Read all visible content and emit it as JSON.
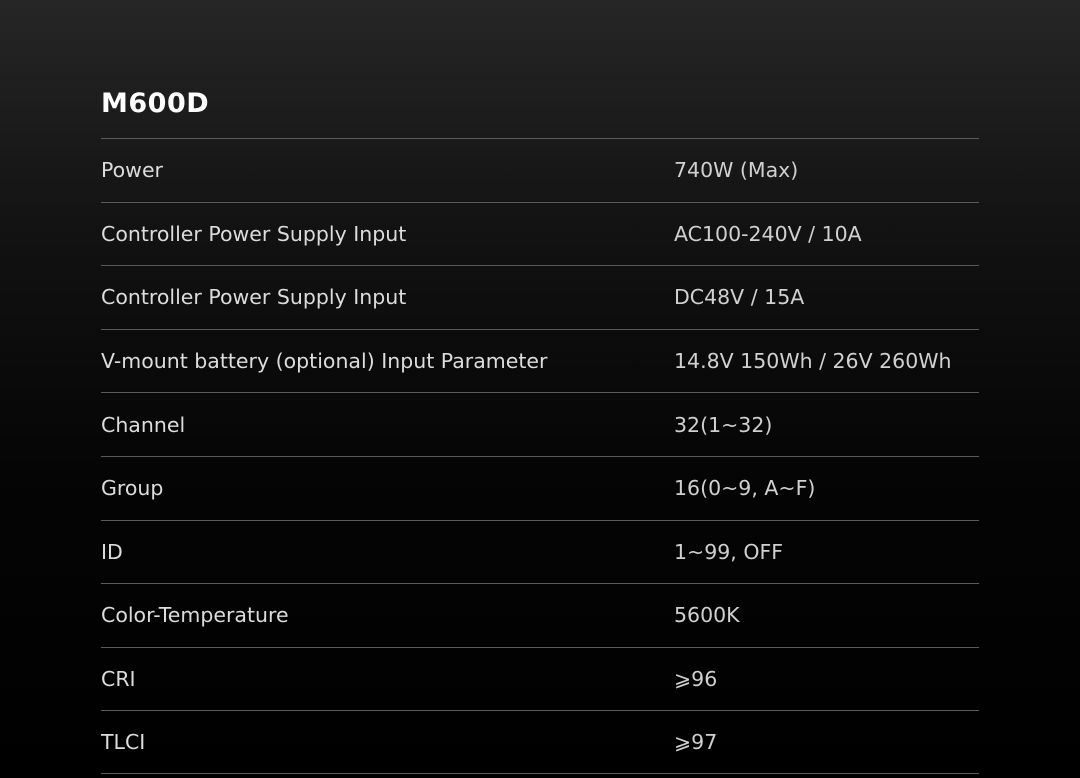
{
  "title": "M600D",
  "specs": [
    {
      "label": "Power",
      "value": "740W (Max)"
    },
    {
      "label": "Controller Power Supply Input",
      "value": "AC100-240V / 10A"
    },
    {
      "label": "Controller Power Supply Input",
      "value": "DC48V / 15A"
    },
    {
      "label": "V-mount battery (optional) Input Parameter",
      "value": "14.8V 150Wh / 26V 260Wh"
    },
    {
      "label": "Channel",
      "value": "32(1~32)"
    },
    {
      "label": "Group",
      "value": "16(0~9, A~F)"
    },
    {
      "label": "ID",
      "value": "1~99, OFF"
    },
    {
      "label": "Color-Temperature",
      "value": "5600K"
    },
    {
      "label": "CRI",
      "value": "⩾96"
    },
    {
      "label": "TLCI",
      "value": "⩾97"
    }
  ]
}
